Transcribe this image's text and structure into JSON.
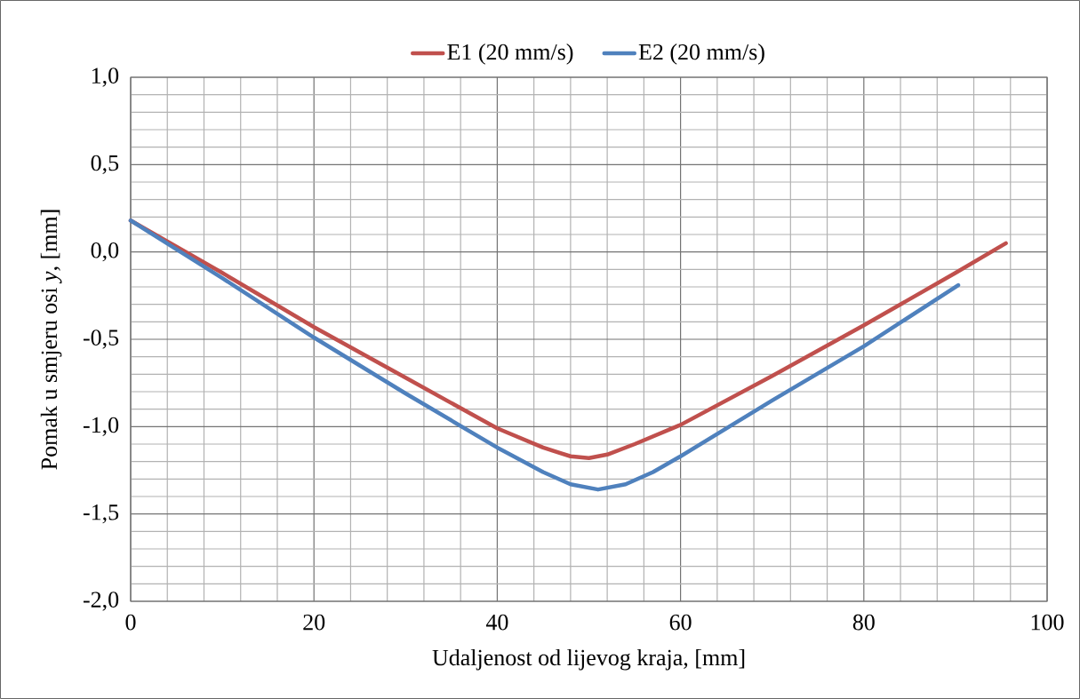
{
  "chart_data": {
    "type": "line",
    "xlabel": "Udaljenost od lijevog kraja, [mm]",
    "ylabel": "Pomak u smjeru osi *y*, [mm]",
    "xlim": [
      0,
      100
    ],
    "xticks": [
      0,
      20,
      40,
      60,
      80,
      100
    ],
    "ylim": [
      -2.0,
      1.0
    ],
    "yticks": [
      {
        "value": -2.0,
        "label": "-2,0"
      },
      {
        "value": -1.5,
        "label": "-1,5"
      },
      {
        "value": -1.0,
        "label": "-1,0"
      },
      {
        "value": -0.5,
        "label": "-0,5"
      },
      {
        "value": 0.0,
        "label": "0,0"
      },
      {
        "value": 0.5,
        "label": "0,5"
      },
      {
        "value": 1.0,
        "label": "1,0"
      }
    ],
    "grid": true,
    "legend": "top",
    "marker": "none",
    "line_style": "solid",
    "series": [
      {
        "name": "E1 (20 mm/s)",
        "color": "#c0504d",
        "x": [
          0,
          10,
          20,
          30,
          40,
          45,
          48,
          50,
          52,
          55,
          60,
          70,
          80,
          90,
          95.5
        ],
        "values": [
          0.18,
          -0.12,
          -0.43,
          -0.72,
          -1.01,
          -1.12,
          -1.17,
          -1.18,
          -1.16,
          -1.1,
          -0.99,
          -0.71,
          -0.42,
          -0.12,
          0.05
        ]
      },
      {
        "name": "E2 (20 mm/s)",
        "color": "#4f81bd",
        "x": [
          0,
          10,
          20,
          30,
          40,
          45,
          48,
          51,
          54,
          57,
          60,
          70,
          80,
          90.3
        ],
        "values": [
          0.18,
          -0.15,
          -0.49,
          -0.81,
          -1.12,
          -1.26,
          -1.33,
          -1.36,
          -1.33,
          -1.26,
          -1.17,
          -0.85,
          -0.54,
          -0.19
        ]
      }
    ]
  }
}
